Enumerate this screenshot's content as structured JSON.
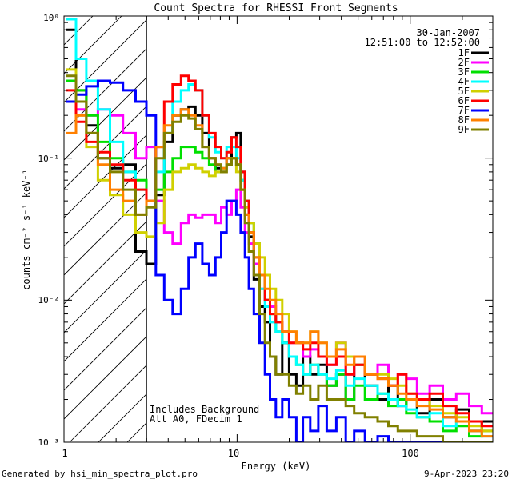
{
  "chart_data": {
    "type": "line",
    "title": "Count Spectra for RHESSI Front Segments",
    "xlabel": "Energy (keV)",
    "ylabel": "counts cm⁻² s⁻¹ keV⁻¹",
    "xscale": "log",
    "yscale": "log",
    "xlim": [
      1,
      300
    ],
    "ylim": [
      0.001,
      1
    ],
    "xtick_labels": [
      "1",
      "10",
      "100"
    ],
    "ytick_labels": [
      "10⁻³",
      "10⁻²",
      "10⁻¹",
      "10⁰"
    ],
    "date": "30-Jan-2007",
    "time_range": "12:51:00 to 12:52:00",
    "annotation_lines": [
      "Includes Background",
      "Att A0, FDecim 1"
    ],
    "hatched_below_keV": 3,
    "footer_left": "Generated by hsi_min_spectra_plot.pro",
    "footer_right": "9-Apr-2023 23:20",
    "series": [
      {
        "name": "1F",
        "color": "#000000",
        "x": [
          1.1,
          1.25,
          1.45,
          1.7,
          2.0,
          2.4,
          2.8,
          3.2,
          3.6,
          4.0,
          4.5,
          5.0,
          5.5,
          6.0,
          6.6,
          7.2,
          7.8,
          8.4,
          9.0,
          9.6,
          10.2,
          10.8,
          11.4,
          12,
          13,
          14,
          15,
          16,
          17.5,
          19,
          21,
          23,
          25,
          28,
          31,
          35,
          40,
          45,
          50,
          60,
          70,
          80,
          90,
          100,
          120,
          140,
          170,
          200,
          240,
          280
        ],
        "values": [
          0.8,
          0.3,
          0.17,
          0.1,
          0.085,
          0.09,
          0.022,
          0.018,
          0.055,
          0.13,
          0.2,
          0.22,
          0.23,
          0.2,
          0.15,
          0.1,
          0.085,
          0.08,
          0.1,
          0.14,
          0.15,
          0.08,
          0.04,
          0.028,
          0.014,
          0.009,
          0.007,
          0.004,
          0.003,
          0.005,
          0.003,
          0.0025,
          0.004,
          0.003,
          0.0035,
          0.0025,
          0.003,
          0.002,
          0.0035,
          0.0025,
          0.002,
          0.0025,
          0.0018,
          0.002,
          0.0016,
          0.002,
          0.0015,
          0.0017,
          0.0012,
          0.0014
        ]
      },
      {
        "name": "2F",
        "color": "#ff00ff",
        "x": [
          1.1,
          1.25,
          1.45,
          1.7,
          2.0,
          2.4,
          2.8,
          3.2,
          3.6,
          4.0,
          4.5,
          5.0,
          5.5,
          6.0,
          6.6,
          7.2,
          7.8,
          8.4,
          9.0,
          9.6,
          10.2,
          10.8,
          11.4,
          12,
          13,
          14,
          15,
          16,
          17.5,
          19,
          21,
          23,
          25,
          28,
          31,
          35,
          40,
          45,
          50,
          60,
          70,
          80,
          90,
          100,
          120,
          140,
          170,
          200,
          240,
          280
        ],
        "values": [
          0.25,
          0.22,
          0.2,
          0.22,
          0.2,
          0.15,
          0.1,
          0.12,
          0.05,
          0.03,
          0.025,
          0.035,
          0.04,
          0.038,
          0.04,
          0.04,
          0.035,
          0.045,
          0.04,
          0.05,
          0.06,
          0.045,
          0.03,
          0.025,
          0.018,
          0.012,
          0.01,
          0.009,
          0.007,
          0.006,
          0.005,
          0.005,
          0.004,
          0.0045,
          0.004,
          0.0035,
          0.005,
          0.003,
          0.004,
          0.003,
          0.0035,
          0.0025,
          0.003,
          0.0028,
          0.0022,
          0.0025,
          0.002,
          0.0022,
          0.0018,
          0.0016
        ]
      },
      {
        "name": "3F",
        "color": "#00e000",
        "x": [
          1.1,
          1.25,
          1.45,
          1.7,
          2.0,
          2.4,
          2.8,
          3.2,
          3.6,
          4.0,
          4.5,
          5.0,
          5.5,
          6.0,
          6.6,
          7.2,
          7.8,
          8.4,
          9.0,
          9.6,
          10.2,
          10.8,
          11.4,
          12,
          13,
          14,
          15,
          16,
          17.5,
          19,
          21,
          23,
          25,
          28,
          31,
          35,
          40,
          45,
          50,
          60,
          70,
          80,
          90,
          100,
          120,
          140,
          170,
          200,
          240,
          280
        ],
        "values": [
          0.35,
          0.3,
          0.2,
          0.13,
          0.1,
          0.08,
          0.07,
          0.05,
          0.06,
          0.08,
          0.1,
          0.12,
          0.12,
          0.11,
          0.1,
          0.09,
          0.08,
          0.085,
          0.09,
          0.1,
          0.09,
          0.07,
          0.05,
          0.035,
          0.025,
          0.015,
          0.01,
          0.008,
          0.006,
          0.005,
          0.004,
          0.0035,
          0.003,
          0.0035,
          0.003,
          0.0025,
          0.003,
          0.002,
          0.0025,
          0.002,
          0.0022,
          0.0018,
          0.002,
          0.0016,
          0.0015,
          0.0014,
          0.0012,
          0.0013,
          0.0011,
          0.0012
        ]
      },
      {
        "name": "4F",
        "color": "#00ffff",
        "x": [
          1.1,
          1.25,
          1.45,
          1.7,
          2.0,
          2.4,
          2.8,
          3.2,
          3.6,
          4.0,
          4.5,
          5.0,
          5.5,
          6.0,
          6.6,
          7.2,
          7.8,
          8.4,
          9.0,
          9.6,
          10.2,
          10.8,
          11.4,
          12,
          13,
          14,
          15,
          16,
          17.5,
          19,
          21,
          23,
          25,
          28,
          31,
          35,
          40,
          45,
          50,
          60,
          70,
          80,
          90,
          100,
          120,
          140,
          170,
          200,
          240,
          280
        ],
        "values": [
          0.95,
          0.5,
          0.35,
          0.22,
          0.13,
          0.08,
          0.06,
          0.05,
          0.08,
          0.15,
          0.25,
          0.3,
          0.33,
          0.3,
          0.2,
          0.14,
          0.11,
          0.1,
          0.12,
          0.12,
          0.1,
          0.07,
          0.045,
          0.03,
          0.02,
          0.012,
          0.009,
          0.007,
          0.006,
          0.005,
          0.004,
          0.0035,
          0.003,
          0.0035,
          0.003,
          0.0028,
          0.0032,
          0.0025,
          0.0028,
          0.0025,
          0.0022,
          0.002,
          0.0018,
          0.0017,
          0.0015,
          0.0016,
          0.0013,
          0.0014,
          0.0012,
          0.0011
        ]
      },
      {
        "name": "5F",
        "color": "#d0d000",
        "x": [
          1.1,
          1.25,
          1.45,
          1.7,
          2.0,
          2.4,
          2.8,
          3.2,
          3.6,
          4.0,
          4.5,
          5.0,
          5.5,
          6.0,
          6.6,
          7.2,
          7.8,
          8.4,
          9.0,
          9.6,
          10.2,
          10.8,
          11.4,
          12,
          13,
          14,
          15,
          16,
          17.5,
          19,
          21,
          23,
          25,
          28,
          31,
          35,
          40,
          45,
          50,
          60,
          70,
          80,
          90,
          100,
          120,
          140,
          170,
          200,
          240,
          280
        ],
        "values": [
          0.42,
          0.2,
          0.12,
          0.07,
          0.055,
          0.04,
          0.03,
          0.028,
          0.035,
          0.06,
          0.08,
          0.085,
          0.09,
          0.085,
          0.08,
          0.075,
          0.08,
          0.08,
          0.09,
          0.1,
          0.08,
          0.06,
          0.045,
          0.035,
          0.025,
          0.02,
          0.015,
          0.012,
          0.01,
          0.008,
          0.006,
          0.005,
          0.005,
          0.006,
          0.005,
          0.004,
          0.005,
          0.004,
          0.0035,
          0.003,
          0.003,
          0.0028,
          0.0025,
          0.0022,
          0.002,
          0.0018,
          0.0016,
          0.0015,
          0.0013,
          0.0012
        ]
      },
      {
        "name": "6F",
        "color": "#ff0000",
        "x": [
          1.1,
          1.25,
          1.45,
          1.7,
          2.0,
          2.4,
          2.8,
          3.2,
          3.6,
          4.0,
          4.5,
          5.0,
          5.5,
          6.0,
          6.6,
          7.2,
          7.8,
          8.4,
          9.0,
          9.6,
          10.2,
          10.8,
          11.4,
          12,
          13,
          14,
          15,
          16,
          17.5,
          19,
          21,
          23,
          25,
          28,
          31,
          35,
          40,
          45,
          50,
          60,
          70,
          80,
          90,
          100,
          120,
          140,
          170,
          200,
          240,
          280
        ],
        "values": [
          0.3,
          0.18,
          0.13,
          0.11,
          0.09,
          0.07,
          0.06,
          0.05,
          0.12,
          0.25,
          0.33,
          0.38,
          0.35,
          0.3,
          0.2,
          0.15,
          0.12,
          0.1,
          0.11,
          0.14,
          0.12,
          0.08,
          0.05,
          0.03,
          0.02,
          0.015,
          0.01,
          0.008,
          0.007,
          0.006,
          0.005,
          0.005,
          0.0045,
          0.005,
          0.004,
          0.0035,
          0.004,
          0.003,
          0.0035,
          0.003,
          0.0028,
          0.0025,
          0.003,
          0.0022,
          0.002,
          0.0022,
          0.0018,
          0.0016,
          0.0014,
          0.0013
        ]
      },
      {
        "name": "7F",
        "color": "#0000ff",
        "x": [
          1.1,
          1.25,
          1.45,
          1.7,
          2.0,
          2.4,
          2.8,
          3.2,
          3.6,
          4.0,
          4.5,
          5.0,
          5.5,
          6.0,
          6.6,
          7.2,
          7.8,
          8.4,
          9.0,
          9.6,
          10.2,
          10.8,
          11.4,
          12,
          13,
          14,
          15,
          16,
          17.5,
          19,
          21,
          23,
          25,
          28,
          31,
          35,
          40,
          45,
          50,
          60,
          70,
          80,
          90,
          100,
          120,
          140,
          170,
          200,
          240,
          280
        ],
        "values": [
          0.25,
          0.28,
          0.32,
          0.35,
          0.34,
          0.3,
          0.25,
          0.2,
          0.015,
          0.01,
          0.008,
          0.012,
          0.02,
          0.025,
          0.018,
          0.015,
          0.02,
          0.03,
          0.05,
          0.05,
          0.04,
          0.03,
          0.02,
          0.012,
          0.008,
          0.005,
          0.003,
          0.002,
          0.0015,
          0.002,
          0.0015,
          0.001,
          0.0015,
          0.0012,
          0.0018,
          0.0012,
          0.0015,
          0.001,
          0.0012,
          0.001,
          0.0011,
          0.001,
          0.001,
          0.001,
          0.001,
          0.001,
          0.001,
          0.001,
          0.001,
          0.001
        ]
      },
      {
        "name": "8F",
        "color": "#ff8000",
        "x": [
          1.1,
          1.25,
          1.45,
          1.7,
          2.0,
          2.4,
          2.8,
          3.2,
          3.6,
          4.0,
          4.5,
          5.0,
          5.5,
          6.0,
          6.6,
          7.2,
          7.8,
          8.4,
          9.0,
          9.6,
          10.2,
          10.8,
          11.4,
          12,
          13,
          14,
          15,
          16,
          17.5,
          19,
          21,
          23,
          25,
          28,
          31,
          35,
          40,
          45,
          50,
          60,
          70,
          80,
          90,
          100,
          120,
          140,
          170,
          200,
          240,
          280
        ],
        "values": [
          0.15,
          0.2,
          0.15,
          0.09,
          0.06,
          0.05,
          0.04,
          0.05,
          0.12,
          0.17,
          0.2,
          0.22,
          0.2,
          0.17,
          0.12,
          0.1,
          0.09,
          0.085,
          0.1,
          0.1,
          0.09,
          0.06,
          0.04,
          0.03,
          0.02,
          0.015,
          0.012,
          0.01,
          0.008,
          0.006,
          0.006,
          0.005,
          0.005,
          0.006,
          0.005,
          0.004,
          0.0045,
          0.0035,
          0.004,
          0.003,
          0.0028,
          0.0025,
          0.0022,
          0.002,
          0.0018,
          0.0017,
          0.0015,
          0.0014,
          0.0012,
          0.0011
        ]
      },
      {
        "name": "9F",
        "color": "#808000",
        "x": [
          1.1,
          1.25,
          1.45,
          1.7,
          2.0,
          2.4,
          2.8,
          3.2,
          3.6,
          4.0,
          4.5,
          5.0,
          5.5,
          6.0,
          6.6,
          7.2,
          7.8,
          8.4,
          9.0,
          9.6,
          10.2,
          10.8,
          11.4,
          12,
          13,
          14,
          15,
          16,
          17.5,
          19,
          21,
          23,
          25,
          28,
          31,
          35,
          40,
          45,
          50,
          60,
          70,
          80,
          90,
          100,
          120,
          140,
          170,
          200,
          240,
          280
        ],
        "values": [
          0.38,
          0.25,
          0.15,
          0.1,
          0.08,
          0.06,
          0.04,
          0.045,
          0.1,
          0.15,
          0.18,
          0.2,
          0.19,
          0.16,
          0.12,
          0.1,
          0.09,
          0.08,
          0.09,
          0.1,
          0.09,
          0.06,
          0.035,
          0.022,
          0.015,
          0.008,
          0.005,
          0.004,
          0.003,
          0.003,
          0.0025,
          0.0022,
          0.0025,
          0.002,
          0.0025,
          0.002,
          0.002,
          0.0018,
          0.0016,
          0.0015,
          0.0014,
          0.0013,
          0.0012,
          0.0012,
          0.0011,
          0.0011,
          0.001,
          0.001,
          0.001,
          0.001
        ]
      }
    ]
  }
}
